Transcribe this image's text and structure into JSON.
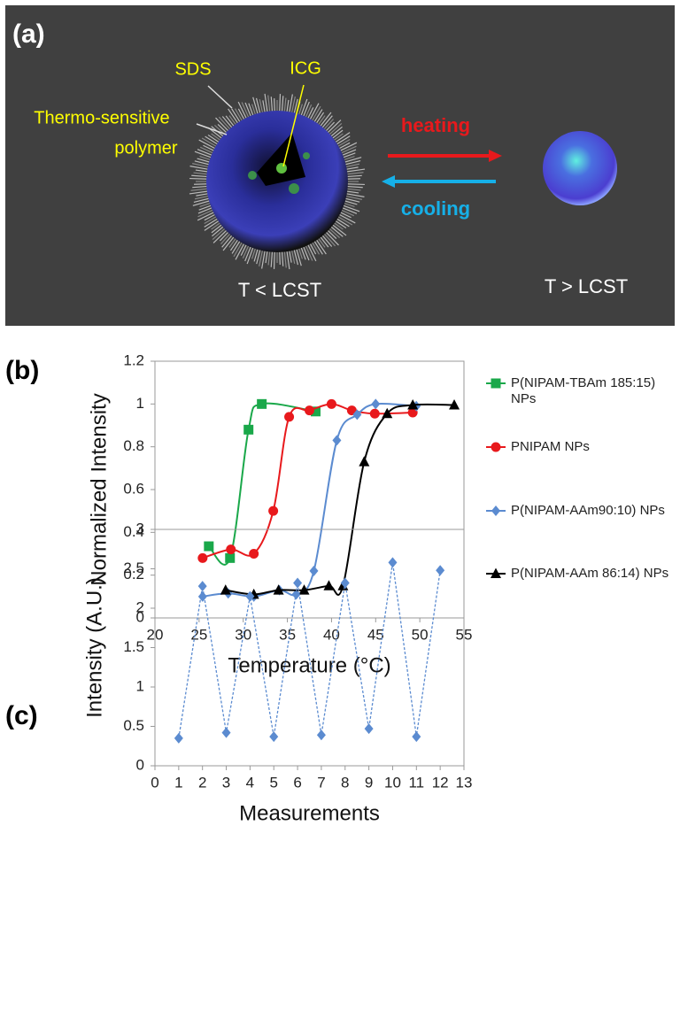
{
  "panel_labels": [
    "(a)",
    "(b)",
    "(c)"
  ],
  "diagram": {
    "sds": "SDS",
    "icg": "ICG",
    "polymer_line1": "Thermo-sensitive",
    "polymer_line2": "polymer",
    "heating": "heating",
    "cooling": "cooling",
    "left_state": "T < LCST",
    "right_state": "T > LCST"
  },
  "chart_data": [
    {
      "type": "line",
      "x_label": "Temperature (°C)",
      "y_label": "Normalized Intensity",
      "xlim": [
        20,
        55
      ],
      "xticks": [
        20,
        25,
        30,
        35,
        40,
        45,
        50,
        55
      ],
      "ylim": [
        0,
        1.2
      ],
      "yticks": [
        0,
        0.2,
        0.4,
        0.6,
        0.8,
        1,
        1.2
      ],
      "smooth": true,
      "series": [
        {
          "name": "P(NIPAM-TBAm 185:15) NPs",
          "color": "#1aa84a",
          "marker": "square",
          "x": [
            26.1,
            28.5,
            30.6,
            32.1,
            38.2
          ],
          "values": [
            0.335,
            0.28,
            0.88,
            1.0,
            0.965
          ]
        },
        {
          "name": "PNIPAM NPs",
          "color": "#e8191c",
          "marker": "circle",
          "x": [
            25.4,
            28.6,
            31.2,
            33.4,
            35.2,
            37.5,
            40,
            42.3,
            44.9,
            49.2
          ],
          "values": [
            0.28,
            0.32,
            0.3,
            0.5,
            0.94,
            0.97,
            1.0,
            0.97,
            0.955,
            0.96
          ]
        },
        {
          "name": "P(NIPAM-AAm90:10) NPs",
          "color": "#5b8bd0",
          "marker": "diamond",
          "x": [
            25.4,
            28.3,
            31.2,
            34.1,
            36,
            38,
            40.6,
            42.9,
            45,
            49.6
          ],
          "values": [
            0.1,
            0.115,
            0.1,
            0.13,
            0.11,
            0.22,
            0.83,
            0.95,
            1.0,
            0.99
          ]
        },
        {
          "name": "P(NIPAM-AAm 86:14) NPs",
          "color": "#000000",
          "marker": "triangle",
          "x": [
            28,
            31.2,
            34,
            36.9,
            39.7,
            41.3,
            43.7,
            46.3,
            49.2,
            53.9
          ],
          "values": [
            0.13,
            0.11,
            0.13,
            0.13,
            0.15,
            0.15,
            0.73,
            0.955,
            0.995,
            0.995
          ]
        }
      ]
    },
    {
      "type": "line",
      "x_label": "Measurements",
      "y_label": "Intensity (A.U.)",
      "xlim": [
        0,
        13
      ],
      "xticks": [
        0,
        1,
        2,
        3,
        4,
        5,
        6,
        7,
        8,
        9,
        10,
        11,
        12,
        13
      ],
      "ylim": [
        0,
        3
      ],
      "yticks": [
        0,
        0.5,
        1,
        1.5,
        2,
        2.5,
        3
      ],
      "smooth": false,
      "line_style": "dashed",
      "series": [
        {
          "color": "#5b8bd0",
          "marker": "diamond",
          "x": [
            1,
            2,
            3,
            4,
            5,
            6,
            7,
            8,
            9,
            10,
            11,
            12
          ],
          "values": [
            0.35,
            2.28,
            0.42,
            2.15,
            0.37,
            2.32,
            0.39,
            2.32,
            0.47,
            2.58,
            0.37,
            2.48
          ]
        }
      ]
    }
  ]
}
